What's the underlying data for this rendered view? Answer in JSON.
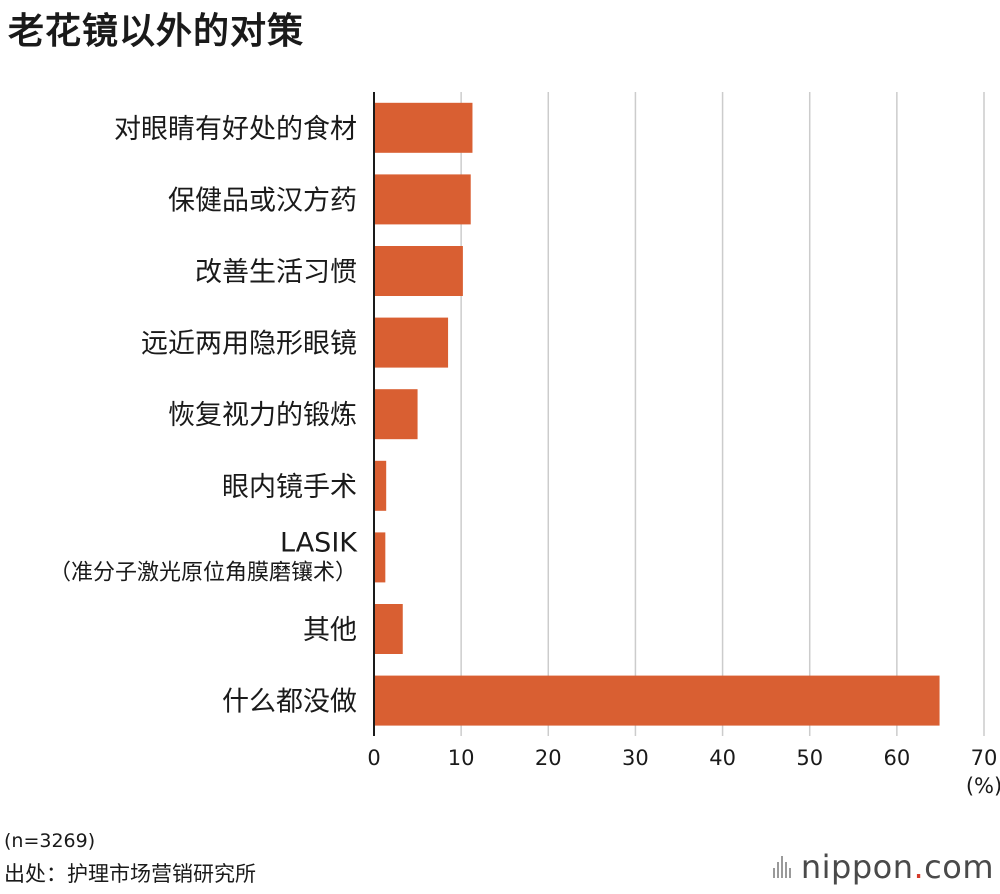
{
  "title": "老花镜以外的对策",
  "chart_data": {
    "type": "bar",
    "orientation": "horizontal",
    "categories": [
      [
        "对眼睛有好处的食材"
      ],
      [
        "保健品或汉方药"
      ],
      [
        "改善生活习惯"
      ],
      [
        "远近两用隐形眼镜"
      ],
      [
        "恢复视力的锻炼"
      ],
      [
        "眼内镜手术"
      ],
      [
        "LASIK",
        "（准分子激光原位角膜磨镶术）"
      ],
      [
        "其他"
      ],
      [
        "什么都没做"
      ]
    ],
    "values": [
      11.3,
      11.1,
      10.2,
      8.5,
      5.0,
      1.4,
      1.3,
      3.3,
      64.9
    ],
    "xlim": [
      0,
      70
    ],
    "xticks": [
      "0",
      "10",
      "20",
      "30",
      "40",
      "50",
      "60",
      "70"
    ],
    "unit": "(%)",
    "grid": true,
    "bar_color": "#d95f32"
  },
  "note": "(n=3269)",
  "source": "出处：护理市场营销研究所",
  "logo": {
    "main": "nippon",
    "dot": ".",
    "suffix": "com",
    "dot_color": "#d43a2a"
  }
}
